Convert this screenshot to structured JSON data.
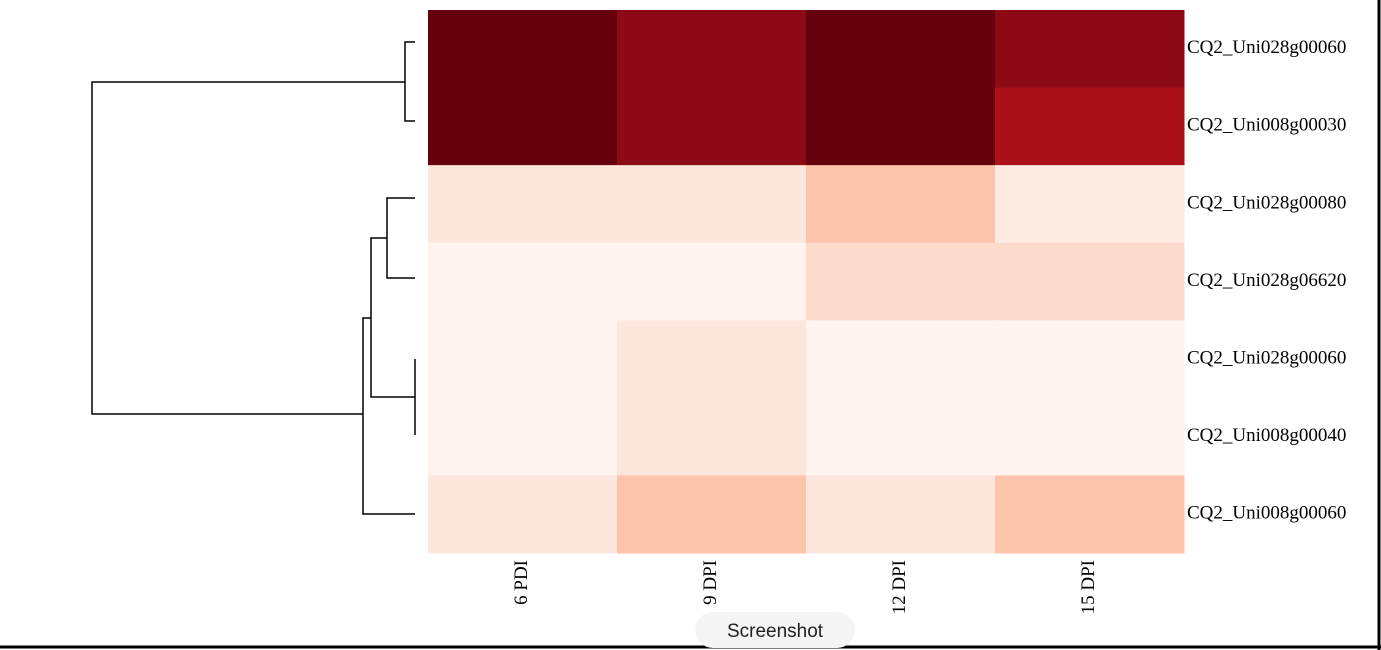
{
  "chart_data": {
    "type": "heatmap",
    "categories": [
      "6 PDI",
      "9 DPI",
      "12 DPI",
      "15 DPI"
    ],
    "rows": [
      "CQ2_Uni028g00060",
      "CQ2_Uni008g00030",
      "CQ2_Uni028g00080",
      "CQ2_Uni028g06620",
      "CQ2_Uni028g00060",
      "CQ2_Uni008g00040",
      "CQ2_Uni008g00060"
    ],
    "cell_colors": [
      [
        "#67000d",
        "#8b0a15",
        "#67000d",
        "#8b0a15"
      ],
      [
        "#67000d",
        "#8b0a15",
        "#67000d",
        "#ab1119"
      ],
      [
        "#fde7dc",
        "#fde7dc",
        "#fcc4ab",
        "#fdebe2"
      ],
      [
        "#fff4ef",
        "#fff4ef",
        "#fddbcc",
        "#fddbcc"
      ],
      [
        "#fff4ef",
        "#fde7dc",
        "#fff4ef",
        "#fff4ef"
      ],
      [
        "#fff4ef",
        "#fde7dc",
        "#fff4ef",
        "#fff4ef"
      ],
      [
        "#fde7dc",
        "#fcc4ab",
        "#fde7dc",
        "#fcc4ab"
      ]
    ]
  },
  "toolbar": {
    "button": "Screenshot"
  }
}
